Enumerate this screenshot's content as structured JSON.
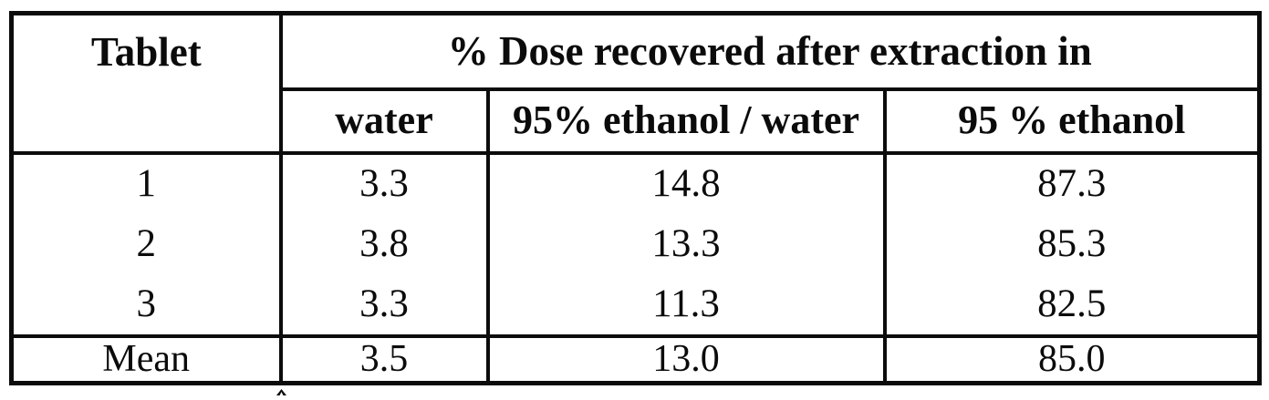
{
  "table": {
    "corner_header": "Tablet",
    "group_header": "% Dose recovered after extraction in",
    "columns": [
      "water",
      "95% ethanol / water",
      "95 % ethanol"
    ],
    "rows": [
      {
        "label": "1",
        "values": [
          "3.3",
          "14.8",
          "87.3"
        ]
      },
      {
        "label": "2",
        "values": [
          "3.8",
          "13.3",
          "85.3"
        ]
      },
      {
        "label": "3",
        "values": [
          "3.3",
          "11.3",
          "82.5"
        ]
      }
    ],
    "summary_row": {
      "label": "Mean",
      "values": [
        "3.5",
        "13.0",
        "85.0"
      ]
    }
  },
  "chart_data": {
    "type": "table",
    "title": "% Dose recovered after extraction in",
    "row_header": "Tablet",
    "categories": [
      "water",
      "95% ethanol / water",
      "95 % ethanol"
    ],
    "series": [
      {
        "name": "1",
        "values": [
          3.3,
          14.8,
          87.3
        ]
      },
      {
        "name": "2",
        "values": [
          3.8,
          13.3,
          85.3
        ]
      },
      {
        "name": "3",
        "values": [
          3.3,
          11.3,
          82.5
        ]
      },
      {
        "name": "Mean",
        "values": [
          3.5,
          13.0,
          85.0
        ]
      }
    ]
  },
  "colors": {
    "background": "#ffffff",
    "border": "#0c0c0c",
    "text": "#0b0b0b"
  }
}
